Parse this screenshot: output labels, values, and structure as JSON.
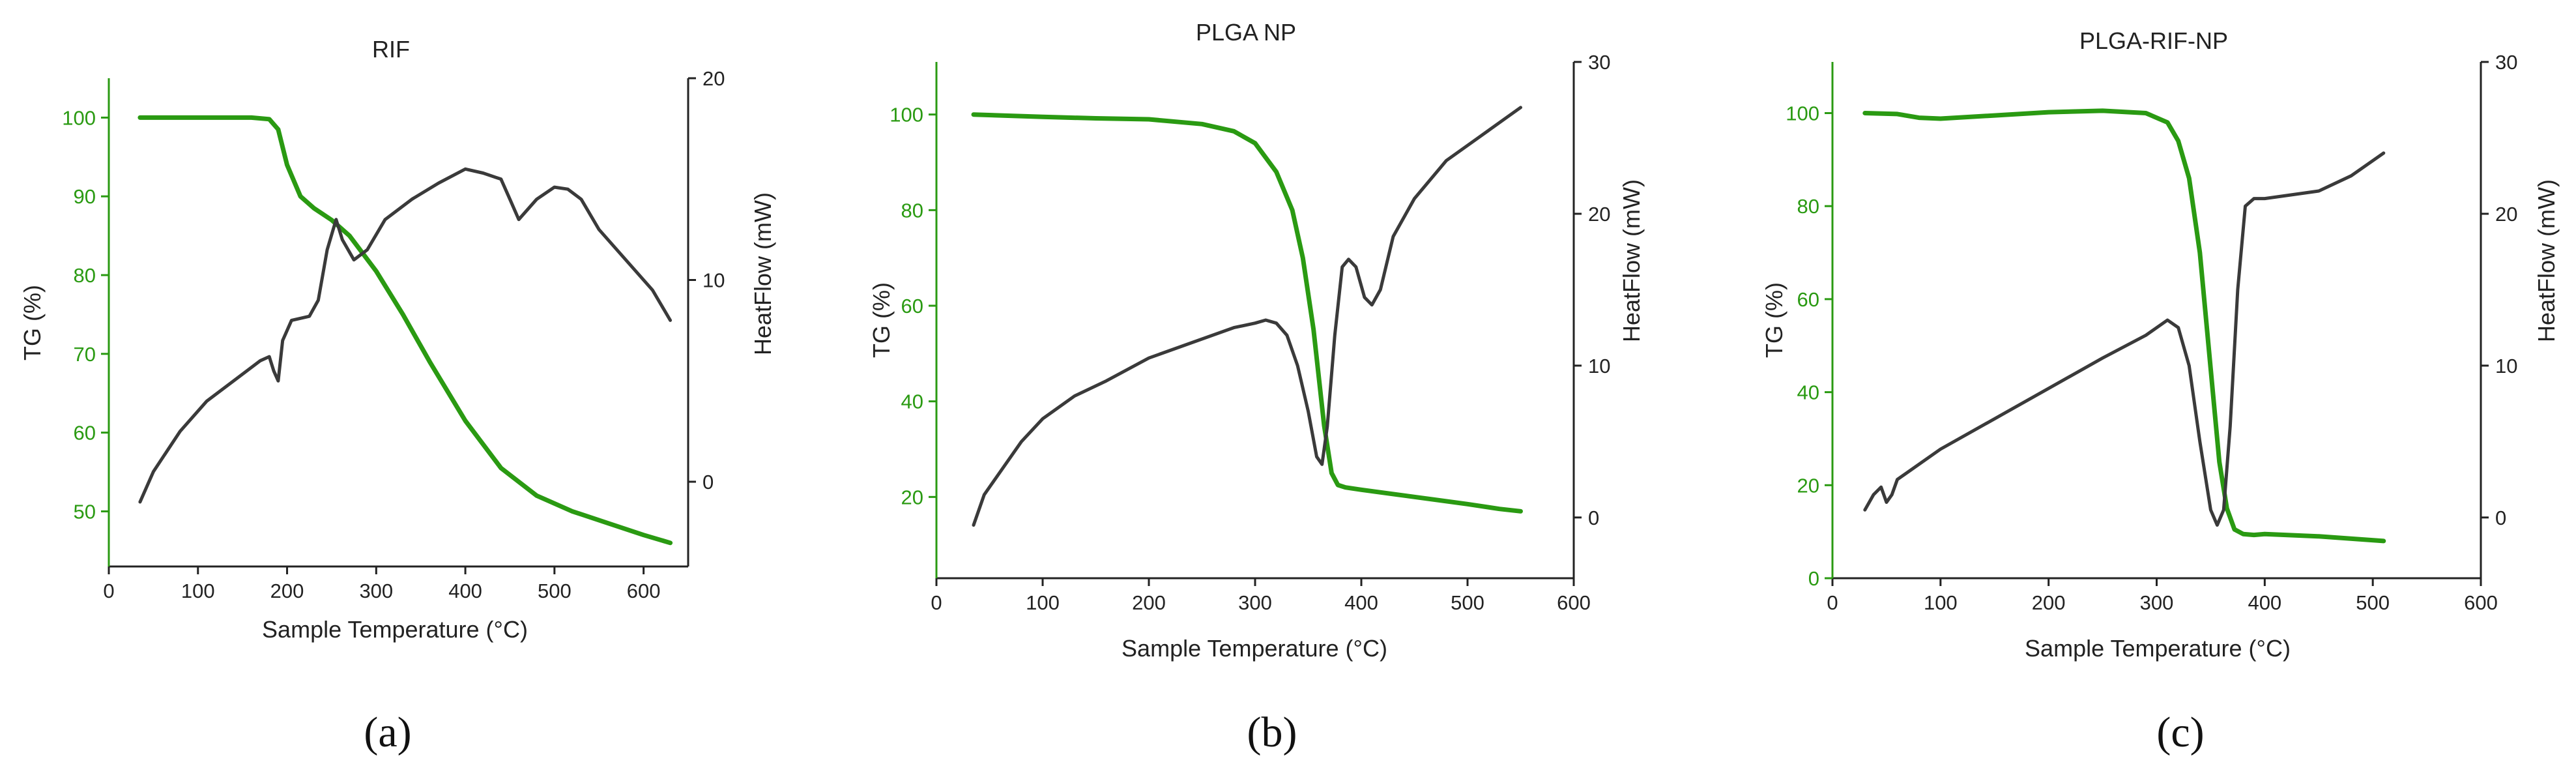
{
  "figure": {
    "panel_labels": [
      "(a)",
      "(b)",
      "(c)"
    ],
    "colors": {
      "tg": "#2a9a12",
      "heatflow": "#3a3a3a",
      "axis_dark": "#222222"
    }
  },
  "chart_data": [
    {
      "type": "line",
      "title": "RIF",
      "xlabel": "Sample Temperature (°C)",
      "ylabel_left": "TG (%)",
      "ylabel_right": "HeatFlow (mW)",
      "xlim": [
        0,
        650
      ],
      "ylim_left": [
        43,
        105
      ],
      "ylim_right": [
        -4.2,
        20
      ],
      "xticks": [
        0,
        100,
        200,
        300,
        400,
        500,
        600
      ],
      "yticks_left": [
        50,
        60,
        70,
        80,
        90,
        100
      ],
      "yticks_right": [
        0,
        10,
        20
      ],
      "series": [
        {
          "name": "TG",
          "axis": "left",
          "color": "#2a9a12",
          "x": [
            35,
            100,
            160,
            180,
            190,
            200,
            215,
            230,
            250,
            270,
            300,
            330,
            360,
            400,
            440,
            480,
            520,
            560,
            600,
            630
          ],
          "y": [
            100,
            100,
            100,
            99.8,
            98.5,
            94,
            90,
            88.5,
            87,
            85,
            80.5,
            75,
            69,
            61.5,
            55.5,
            52,
            50,
            48.5,
            47,
            46
          ]
        },
        {
          "name": "HeatFlow",
          "axis": "right",
          "color": "#3a3a3a",
          "x": [
            35,
            50,
            80,
            110,
            140,
            170,
            180,
            185,
            190,
            195,
            205,
            215,
            225,
            235,
            245,
            255,
            262,
            275,
            290,
            310,
            340,
            370,
            400,
            420,
            440,
            450,
            460,
            470,
            480,
            500,
            515,
            530,
            550,
            570,
            590,
            610,
            630
          ],
          "y": [
            -1,
            0.5,
            2.5,
            4,
            5,
            6,
            6.2,
            5.5,
            5,
            7,
            8,
            8.1,
            8.2,
            9,
            11.5,
            13,
            12,
            11,
            11.5,
            13,
            14,
            14.8,
            15.5,
            15.3,
            15,
            14,
            13,
            13.5,
            14,
            14.6,
            14.5,
            14,
            12.5,
            11.5,
            10.5,
            9.5,
            8
          ]
        }
      ]
    },
    {
      "type": "line",
      "title": "PLGA NP",
      "xlabel": "Sample Temperature (°C)",
      "ylabel_left": "TG (%)",
      "ylabel_right": "HeatFlow (mW)",
      "xlim": [
        0,
        600
      ],
      "ylim_left": [
        3,
        111
      ],
      "ylim_right": [
        -4,
        30
      ],
      "xticks": [
        0,
        100,
        200,
        300,
        400,
        500,
        600
      ],
      "yticks_left": [
        20,
        40,
        60,
        80,
        100
      ],
      "yticks_right": [
        0,
        10,
        20,
        30
      ],
      "series": [
        {
          "name": "TG",
          "axis": "left",
          "color": "#2a9a12",
          "x": [
            35,
            100,
            150,
            200,
            250,
            280,
            300,
            320,
            335,
            345,
            355,
            365,
            372,
            378,
            385,
            400,
            450,
            500,
            530,
            550
          ],
          "y": [
            100,
            99.5,
            99.2,
            99,
            98,
            96.5,
            94,
            88,
            80,
            70,
            55,
            35,
            25,
            22.5,
            22,
            21.5,
            20,
            18.5,
            17.5,
            17
          ]
        },
        {
          "name": "HeatFlow",
          "axis": "right",
          "color": "#3a3a3a",
          "x": [
            35,
            45,
            60,
            80,
            100,
            130,
            160,
            200,
            240,
            280,
            300,
            310,
            320,
            330,
            340,
            350,
            358,
            363,
            368,
            375,
            382,
            388,
            395,
            403,
            410,
            418,
            430,
            450,
            480,
            510,
            540,
            550
          ],
          "y": [
            -0.5,
            1.5,
            3,
            5,
            6.5,
            8,
            9,
            10.5,
            11.5,
            12.5,
            12.8,
            13,
            12.8,
            12,
            10,
            7,
            4,
            3.5,
            6,
            12,
            16.5,
            17,
            16.5,
            14.5,
            14,
            15,
            18.5,
            21,
            23.5,
            25,
            26.5,
            27
          ]
        }
      ]
    },
    {
      "type": "line",
      "title": "PLGA-RIF-NP",
      "xlabel": "Sample Temperature (°C)",
      "ylabel_left": "TG (%)",
      "ylabel_right": "HeatFlow (mW)",
      "xlim": [
        0,
        600
      ],
      "ylim_left": [
        0,
        111
      ],
      "ylim_right": [
        -4,
        30
      ],
      "xticks": [
        0,
        100,
        200,
        300,
        400,
        500,
        600
      ],
      "yticks_left": [
        0,
        20,
        40,
        60,
        80,
        100
      ],
      "yticks_right": [
        0,
        10,
        20,
        30
      ],
      "series": [
        {
          "name": "TG",
          "axis": "left",
          "color": "#2a9a12",
          "x": [
            30,
            60,
            80,
            100,
            150,
            200,
            250,
            290,
            310,
            320,
            330,
            340,
            350,
            358,
            365,
            372,
            380,
            390,
            400,
            450,
            510
          ],
          "y": [
            100,
            99.8,
            99,
            98.8,
            99.5,
            100.2,
            100.5,
            100,
            98,
            94,
            86,
            70,
            45,
            25,
            15,
            10.5,
            9.5,
            9.3,
            9.5,
            9,
            8
          ]
        },
        {
          "name": "HeatFlow",
          "axis": "right",
          "color": "#3a3a3a",
          "x": [
            30,
            38,
            45,
            50,
            55,
            60,
            70,
            100,
            150,
            200,
            250,
            290,
            310,
            320,
            330,
            340,
            350,
            356,
            362,
            368,
            375,
            382,
            390,
            400,
            450,
            480,
            510
          ],
          "y": [
            0.5,
            1.5,
            2,
            1,
            1.5,
            2.5,
            3,
            4.5,
            6.5,
            8.5,
            10.5,
            12,
            13,
            12.5,
            10,
            5,
            0.5,
            -0.5,
            0.5,
            6,
            15,
            20.5,
            21,
            21,
            21.5,
            22.5,
            24
          ]
        }
      ]
    }
  ]
}
